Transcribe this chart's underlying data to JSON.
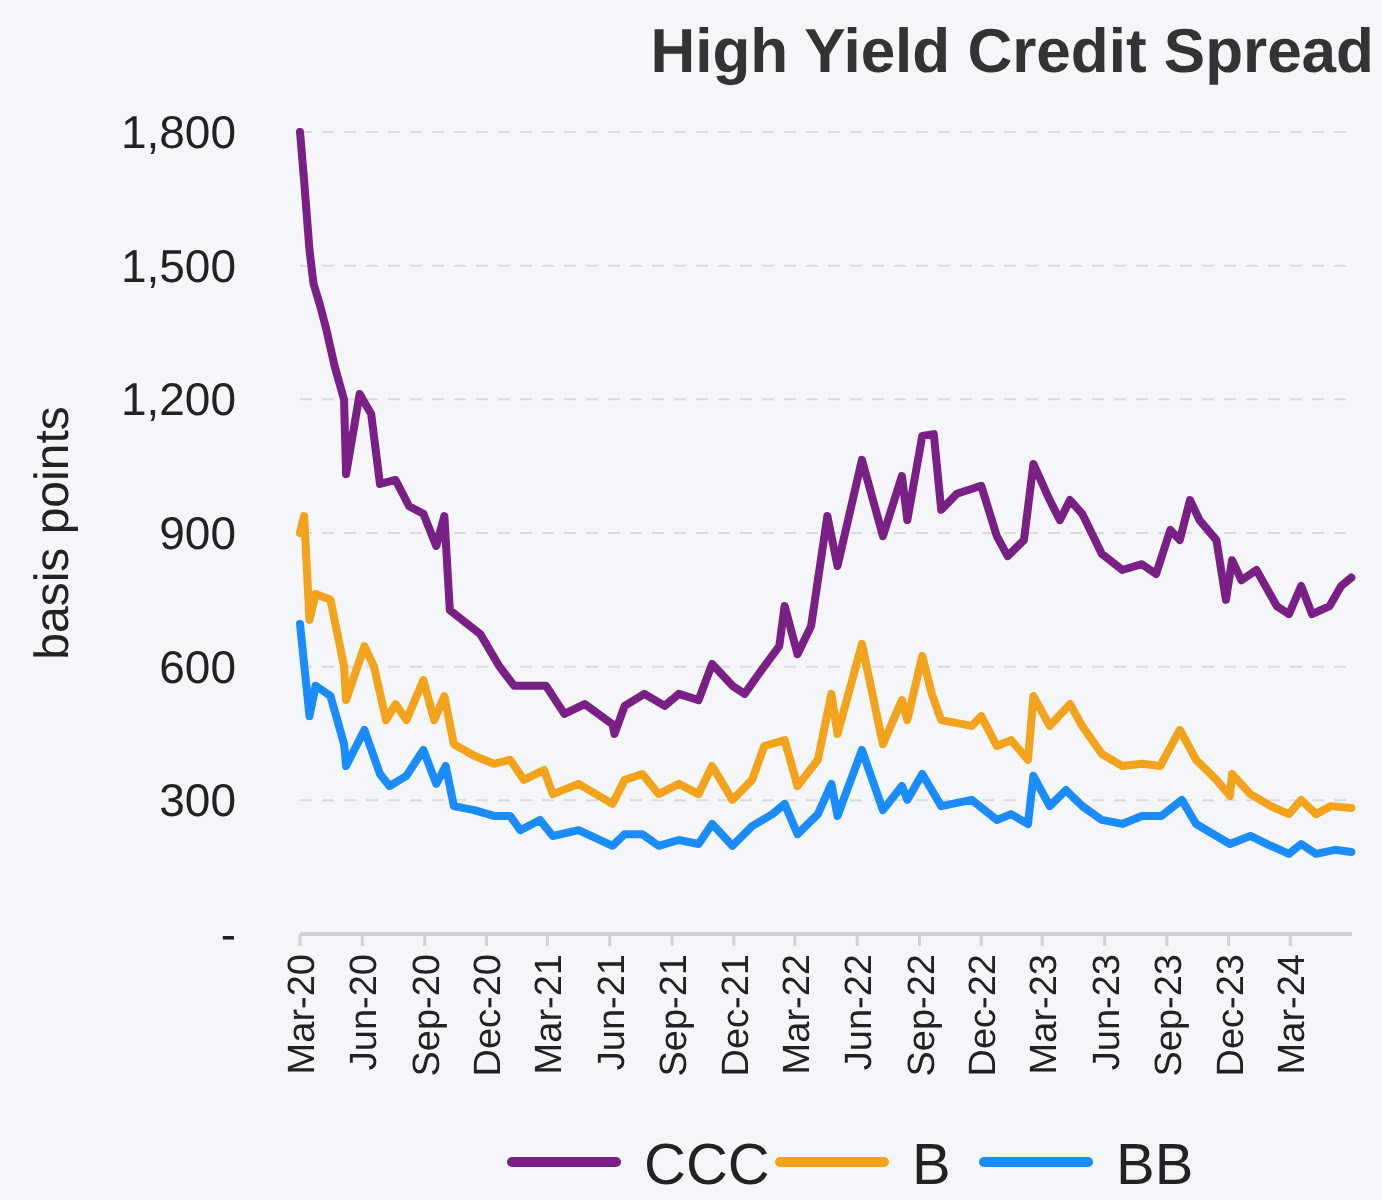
{
  "chart_data": {
    "type": "line",
    "title": "High Yield Credit Spread",
    "ylabel": "basis points",
    "grid": "y",
    "legend": "bottom",
    "line_style": "solid",
    "marker": "none",
    "xlim": [
      "2020-03-01",
      "2024-05-31"
    ],
    "xticks": [
      {
        "value": "2020-03-01",
        "label": "Mar-20"
      },
      {
        "value": "2020-06-01",
        "label": "Jun-20"
      },
      {
        "value": "2020-09-01",
        "label": "Sep-20"
      },
      {
        "value": "2020-12-01",
        "label": "Dec-20"
      },
      {
        "value": "2021-03-01",
        "label": "Mar-21"
      },
      {
        "value": "2021-06-01",
        "label": "Jun-21"
      },
      {
        "value": "2021-09-01",
        "label": "Sep-21"
      },
      {
        "value": "2021-12-01",
        "label": "Dec-21"
      },
      {
        "value": "2022-03-01",
        "label": "Mar-22"
      },
      {
        "value": "2022-06-01",
        "label": "Jun-22"
      },
      {
        "value": "2022-09-01",
        "label": "Sep-22"
      },
      {
        "value": "2022-12-01",
        "label": "Dec-22"
      },
      {
        "value": "2023-03-01",
        "label": "Mar-23"
      },
      {
        "value": "2023-06-01",
        "label": "Jun-23"
      },
      {
        "value": "2023-09-01",
        "label": "Sep-23"
      },
      {
        "value": "2023-12-01",
        "label": "Dec-23"
      },
      {
        "value": "2024-03-01",
        "label": "Mar-24"
      }
    ],
    "ylim": [
      0,
      1800
    ],
    "yticks": [
      {
        "value": 0,
        "label": "-"
      },
      300,
      600,
      900,
      {
        "value": 1200,
        "label": "1,200"
      },
      {
        "value": 1500,
        "label": "1,500"
      },
      {
        "value": 1800,
        "label": "1,800"
      }
    ],
    "series": [
      {
        "name": "CCC",
        "color": "#7a1f86",
        "x": [
          "2020-03-01",
          "2020-03-07",
          "2020-03-15",
          "2020-03-21",
          "2020-03-30",
          "2020-04-09",
          "2020-04-21",
          "2020-05-05",
          "2020-05-08",
          "2020-05-28",
          "2020-06-14",
          "2020-06-27",
          "2020-07-20",
          "2020-08-09",
          "2020-08-30",
          "2020-09-18",
          "2020-09-30",
          "2020-10-08",
          "2020-11-22",
          "2020-12-20",
          "2021-01-11",
          "2021-02-27",
          "2021-03-26",
          "2021-04-25",
          "2021-06-05",
          "2021-06-08",
          "2021-06-23",
          "2021-07-22",
          "2021-08-21",
          "2021-09-11",
          "2021-10-10",
          "2021-10-30",
          "2021-11-29",
          "2021-12-17",
          "2022-01-07",
          "2022-02-06",
          "2022-02-14",
          "2022-03-05",
          "2022-03-25",
          "2022-04-18",
          "2022-05-03",
          "2022-06-08",
          "2022-07-09",
          "2022-08-06",
          "2022-08-14",
          "2022-09-05",
          "2022-09-22",
          "2022-10-03",
          "2022-10-26",
          "2022-12-01",
          "2022-12-24",
          "2023-01-09",
          "2023-02-02",
          "2023-02-16",
          "2023-03-12",
          "2023-03-27",
          "2023-04-11",
          "2023-04-29",
          "2023-05-28",
          "2023-06-27",
          "2023-07-26",
          "2023-08-16",
          "2023-09-06",
          "2023-09-20",
          "2023-10-05",
          "2023-10-19",
          "2023-11-13",
          "2023-11-27",
          "2023-12-06",
          "2023-12-20",
          "2024-01-11",
          "2024-02-10",
          "2024-02-28",
          "2024-03-17",
          "2024-04-02",
          "2024-04-28",
          "2024-05-15",
          "2024-05-30"
        ],
        "values": [
          1800,
          1692,
          1535,
          1459,
          1414,
          1356,
          1275,
          1199,
          1032,
          1212,
          1167,
          1010,
          1019,
          960,
          943,
          871,
          938,
          727,
          673,
          601,
          557,
          557,
          494,
          516,
          471,
          449,
          512,
          539,
          512,
          539,
          525,
          606,
          557,
          539,
          584,
          646,
          736,
          628,
          691,
          938,
          826,
          1064,
          893,
          1028,
          929,
          1118,
          1122,
          952,
          988,
          1006,
          893,
          848,
          884,
          1055,
          974,
          929,
          974,
          943,
          853,
          817,
          830,
          808,
          907,
          884,
          974,
          929,
          884,
          750,
          839,
          794,
          817,
          736,
          718,
          781,
          718,
          736,
          781,
          800
        ]
      },
      {
        "name": "B",
        "color": "#f2a31b",
        "x": [
          "2020-03-01",
          "2020-03-07",
          "2020-03-10",
          "2020-03-15",
          "2020-03-24",
          "2020-04-15",
          "2020-05-05",
          "2020-05-08",
          "2020-06-04",
          "2020-06-18",
          "2020-07-06",
          "2020-07-20",
          "2020-08-05",
          "2020-08-30",
          "2020-09-15",
          "2020-09-30",
          "2020-10-14",
          "2020-11-13",
          "2020-12-12",
          "2021-01-05",
          "2021-01-25",
          "2021-02-24",
          "2021-03-09",
          "2021-04-16",
          "2021-06-05",
          "2021-06-23",
          "2021-07-19",
          "2021-08-12",
          "2021-09-11",
          "2021-10-10",
          "2021-10-30",
          "2021-11-29",
          "2021-12-28",
          "2022-01-15",
          "2022-02-14",
          "2022-03-05",
          "2022-04-04",
          "2022-04-24",
          "2022-05-03",
          "2022-06-08",
          "2022-07-09",
          "2022-08-06",
          "2022-08-14",
          "2022-09-05",
          "2022-09-19",
          "2022-10-03",
          "2022-11-17",
          "2022-12-01",
          "2022-12-24",
          "2023-01-14",
          "2023-02-08",
          "2023-02-16",
          "2023-03-12",
          "2023-04-11",
          "2023-04-29",
          "2023-05-28",
          "2023-06-27",
          "2023-07-26",
          "2023-08-22",
          "2023-09-20",
          "2023-10-14",
          "2023-11-13",
          "2023-12-03",
          "2023-12-06",
          "2024-01-02",
          "2024-02-01",
          "2024-02-28",
          "2024-03-17",
          "2024-04-08",
          "2024-04-30",
          "2024-05-30"
        ],
        "values": [
          900,
          938,
          853,
          705,
          763,
          750,
          601,
          525,
          646,
          601,
          480,
          516,
          480,
          570,
          480,
          534,
          426,
          400,
          382,
          391,
          346,
          368,
          314,
          337,
          292,
          346,
          359,
          314,
          337,
          314,
          377,
          301,
          346,
          422,
          435,
          332,
          391,
          539,
          449,
          651,
          426,
          525,
          480,
          624,
          539,
          480,
          467,
          489,
          422,
          435,
          391,
          534,
          467,
          516,
          467,
          404,
          377,
          382,
          377,
          458,
          391,
          346,
          310,
          359,
          314,
          287,
          269,
          301,
          269,
          287,
          283
        ]
      },
      {
        "name": "BB",
        "color": "#1a8cff",
        "x": [
          "2020-03-01",
          "2020-03-15",
          "2020-03-24",
          "2020-04-15",
          "2020-05-05",
          "2020-05-08",
          "2020-06-04",
          "2020-06-27",
          "2020-07-11",
          "2020-08-05",
          "2020-08-30",
          "2020-09-18",
          "2020-10-02",
          "2020-10-14",
          "2020-11-13",
          "2020-12-12",
          "2021-01-05",
          "2021-01-20",
          "2021-02-18",
          "2021-03-09",
          "2021-04-16",
          "2021-06-05",
          "2021-06-23",
          "2021-07-19",
          "2021-08-12",
          "2021-09-11",
          "2021-10-10",
          "2021-10-30",
          "2021-11-29",
          "2021-12-28",
          "2022-01-27",
          "2022-02-14",
          "2022-03-05",
          "2022-04-04",
          "2022-04-24",
          "2022-05-03",
          "2022-06-08",
          "2022-07-09",
          "2022-08-06",
          "2022-08-14",
          "2022-09-05",
          "2022-10-03",
          "2022-11-17",
          "2022-12-24",
          "2023-01-14",
          "2023-02-08",
          "2023-02-16",
          "2023-03-12",
          "2023-04-05",
          "2023-04-29",
          "2023-05-28",
          "2023-06-27",
          "2023-07-26",
          "2023-08-24",
          "2023-09-23",
          "2023-10-14",
          "2023-11-13",
          "2023-12-03",
          "2024-01-02",
          "2024-02-01",
          "2024-02-28",
          "2024-03-17",
          "2024-04-08",
          "2024-05-06",
          "2024-05-30"
        ],
        "values": [
          696,
          489,
          557,
          534,
          426,
          377,
          458,
          359,
          332,
          355,
          413,
          337,
          377,
          287,
          278,
          265,
          265,
          233,
          256,
          220,
          233,
          198,
          224,
          224,
          198,
          211,
          202,
          247,
          198,
          242,
          269,
          292,
          224,
          269,
          337,
          265,
          413,
          278,
          332,
          301,
          359,
          287,
          301,
          256,
          269,
          247,
          355,
          287,
          323,
          287,
          256,
          247,
          265,
          265,
          301,
          247,
          220,
          202,
          220,
          198,
          180,
          202,
          180,
          189,
          184
        ]
      }
    ]
  }
}
